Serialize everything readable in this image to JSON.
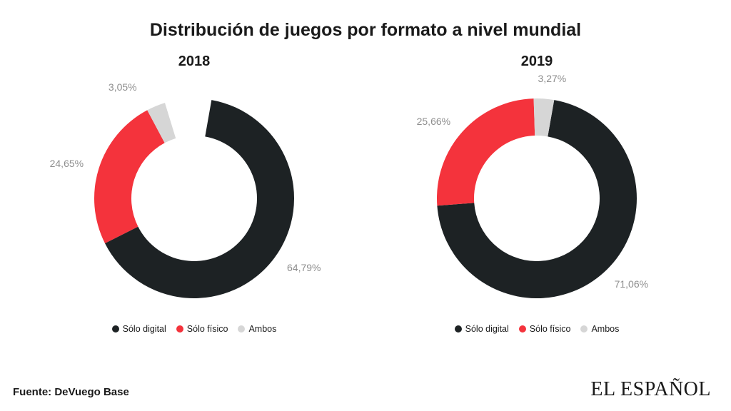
{
  "title": "Distribución de juegos por formato a nivel mundial",
  "source": "Fuente: DeVuego Base",
  "brand": "EL ESPAÑOL",
  "legend_labels": {
    "digital": "Sólo digital",
    "physical": "Sólo físico",
    "both": "Ambos"
  },
  "colors": {
    "digital": "#1d2224",
    "physical": "#f4333c",
    "both": "#d6d6d6",
    "background": "#ffffff",
    "label_text": "#8e8e8e",
    "title_text": "#1a1a1a"
  },
  "donut": {
    "outer_radius": 140,
    "inner_radius": 88,
    "start_angle_deg": 10,
    "direction": "clockwise"
  },
  "charts": [
    {
      "title": "2018",
      "segments": [
        {
          "key": "digital",
          "value": 64.79,
          "label": "64,79%"
        },
        {
          "key": "physical",
          "value": 24.65,
          "label": "24,65%"
        },
        {
          "key": "both",
          "value": 3.05,
          "label": "3,05%"
        }
      ]
    },
    {
      "title": "2019",
      "segments": [
        {
          "key": "digital",
          "value": 71.06,
          "label": "71,06%"
        },
        {
          "key": "physical",
          "value": 25.66,
          "label": "25,66%"
        },
        {
          "key": "both",
          "value": 3.27,
          "label": "3,27%"
        }
      ]
    }
  ]
}
